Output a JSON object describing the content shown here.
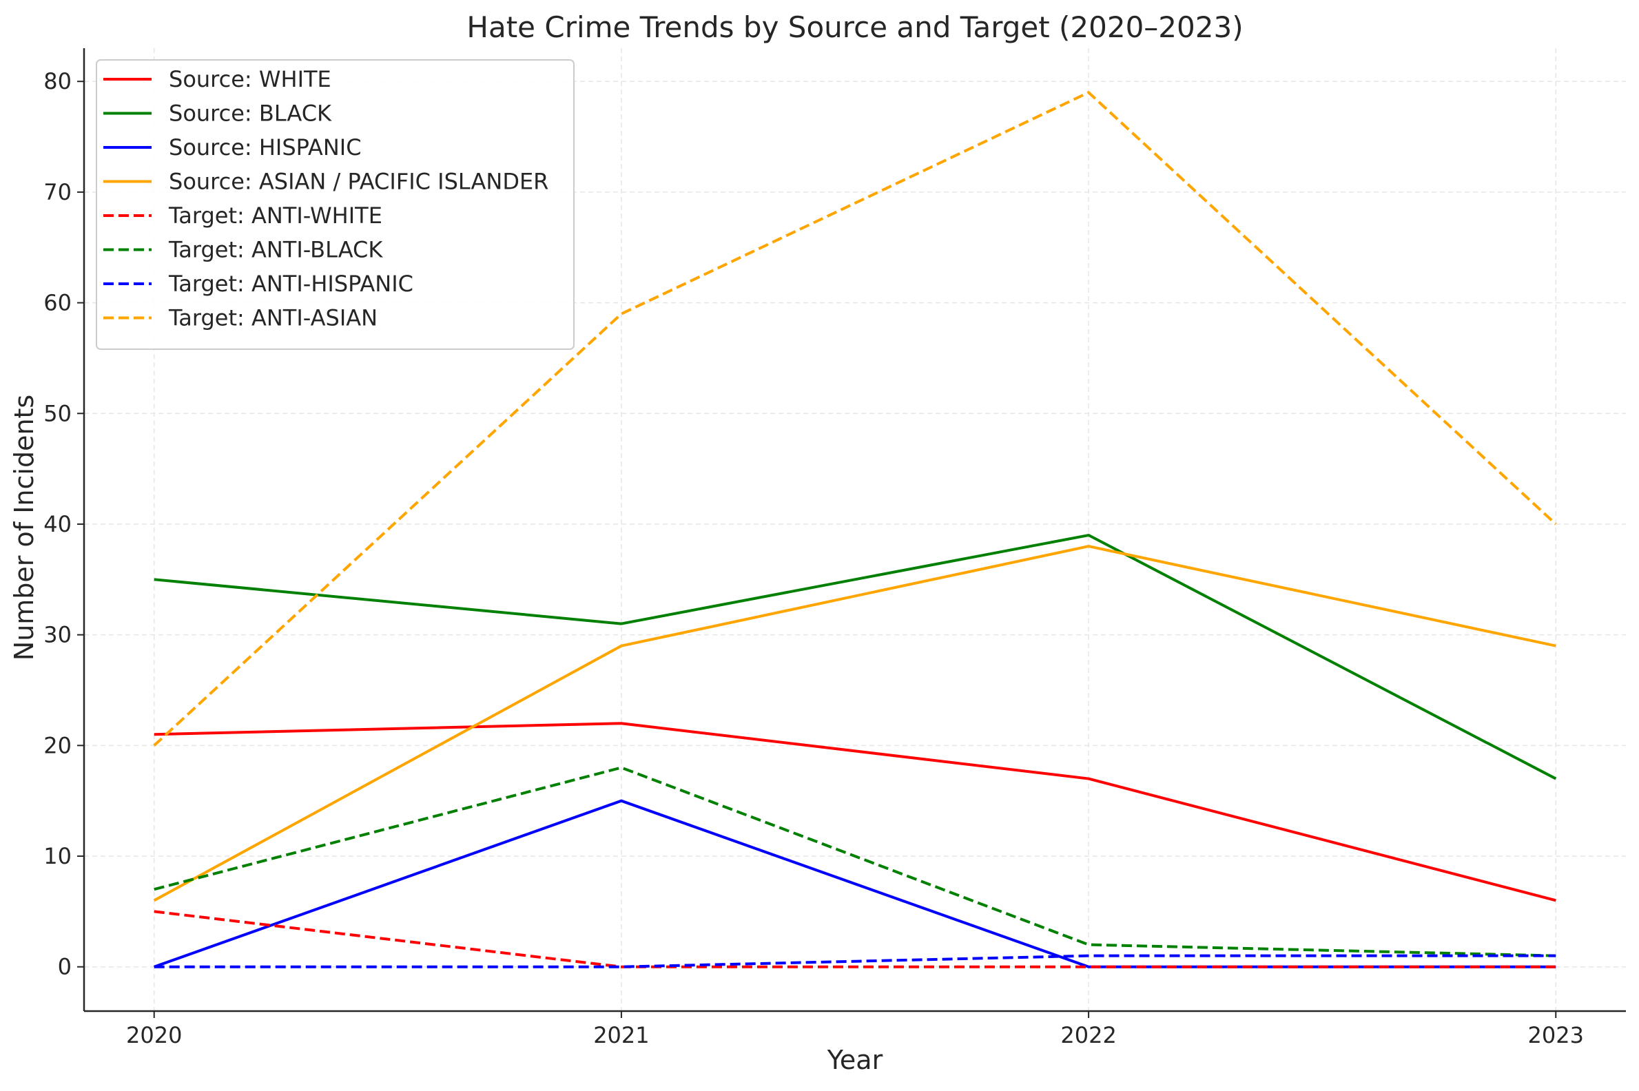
{
  "chart_data": {
    "type": "line",
    "title": "Hate Crime Trends by Source and Target (2020–2023)",
    "xlabel": "Year",
    "ylabel": "Number of Incidents",
    "x": [
      "2020",
      "2021",
      "2022",
      "2023"
    ],
    "xlim": [
      2019.85,
      2023.15
    ],
    "ylim": [
      -4,
      83
    ],
    "yticks": [
      "0",
      "10",
      "20",
      "30",
      "40",
      "50",
      "60",
      "70",
      "80"
    ],
    "grid": true,
    "legend_position": "top-left",
    "series": [
      {
        "name": "Source: WHITE",
        "color": "#ff0000",
        "dash": "solid",
        "values": [
          21,
          22,
          17,
          6
        ]
      },
      {
        "name": "Source: BLACK",
        "color": "#008000",
        "dash": "solid",
        "values": [
          35,
          31,
          39,
          17
        ]
      },
      {
        "name": "Source: HISPANIC",
        "color": "#0000ff",
        "dash": "solid",
        "values": [
          0,
          15,
          0,
          0
        ]
      },
      {
        "name": "Source: ASIAN / PACIFIC ISLANDER",
        "color": "#ffa500",
        "dash": "solid",
        "values": [
          6,
          29,
          38,
          29
        ]
      },
      {
        "name": "Target: ANTI-WHITE",
        "color": "#ff0000",
        "dash": "dashed",
        "values": [
          5,
          0,
          0,
          0
        ]
      },
      {
        "name": "Target: ANTI-BLACK",
        "color": "#008000",
        "dash": "dashed",
        "values": [
          7,
          18,
          2,
          1
        ]
      },
      {
        "name": "Target: ANTI-HISPANIC",
        "color": "#0000ff",
        "dash": "dashed",
        "values": [
          0,
          0,
          1,
          1
        ]
      },
      {
        "name": "Target: ANTI-ASIAN",
        "color": "#ffa500",
        "dash": "dashed",
        "values": [
          20,
          59,
          79,
          40
        ]
      }
    ]
  }
}
